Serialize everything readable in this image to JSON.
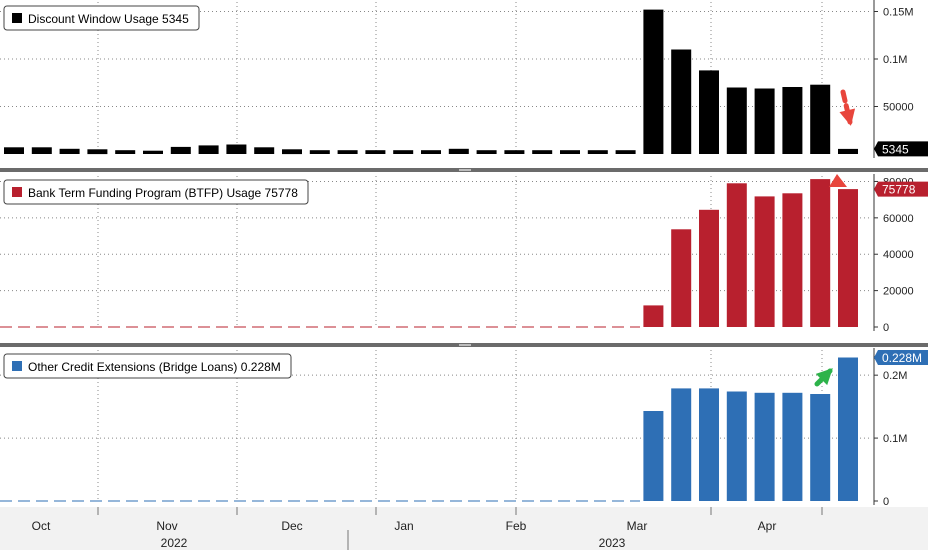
{
  "chart_data": [
    {
      "type": "bar",
      "legend": "Discount Window Usage 5345",
      "color": "#000000",
      "last_value_label": "5345",
      "ylim": [
        0,
        160000
      ],
      "yticks": [
        {
          "value": 50000,
          "label": "50000"
        },
        {
          "value": 100000,
          "label": "0.1M"
        },
        {
          "value": 150000,
          "label": "0.15M"
        }
      ],
      "values": [
        7000,
        7000,
        5500,
        5000,
        4000,
        3500,
        7500,
        9000,
        10000,
        7000,
        5000,
        4000,
        4000,
        4000,
        4000,
        4000,
        5500,
        4000,
        4000,
        4000,
        4000,
        4000,
        4000,
        152000,
        110000,
        88000,
        70000,
        69000,
        70500,
        73000,
        5345
      ]
    },
    {
      "type": "bar",
      "legend": "Bank Term Funding Program (BTFP) Usage 75778",
      "color": "#b8202e",
      "last_value_label": "75778",
      "ylim": [
        0,
        83000
      ],
      "yticks": [
        {
          "value": 0,
          "label": "0"
        },
        {
          "value": 20000,
          "label": "20000"
        },
        {
          "value": 40000,
          "label": "40000"
        },
        {
          "value": 60000,
          "label": "60000"
        },
        {
          "value": 80000,
          "label": "80000"
        }
      ],
      "values": [
        0,
        0,
        0,
        0,
        0,
        0,
        0,
        0,
        0,
        0,
        0,
        0,
        0,
        0,
        0,
        0,
        0,
        0,
        0,
        0,
        0,
        0,
        0,
        11900,
        53700,
        64400,
        79000,
        71800,
        73500,
        81300,
        75778
      ]
    },
    {
      "type": "bar",
      "legend": "Other Credit Extensions (Bridge Loans) 0.228M",
      "color": "#2e6fb5",
      "last_value_label": "0.228M",
      "ylim": [
        0,
        0.24
      ],
      "yticks": [
        {
          "value": 0,
          "label": "0"
        },
        {
          "value": 0.1,
          "label": "0.1M"
        },
        {
          "value": 0.2,
          "label": "0.2M"
        }
      ],
      "values": [
        0,
        0,
        0,
        0,
        0,
        0,
        0,
        0,
        0,
        0,
        0,
        0,
        0,
        0,
        0,
        0,
        0,
        0,
        0,
        0,
        0,
        0,
        0,
        0.143,
        0.179,
        0.179,
        0.174,
        0.172,
        0.172,
        0.17,
        0.228
      ]
    }
  ],
  "x_axis": {
    "months": [
      "Oct",
      "Nov",
      "Dec",
      "Jan",
      "Feb",
      "Mar",
      "Apr"
    ],
    "years": [
      "2022",
      "2023"
    ]
  },
  "annotations": {
    "discount_arrow_color": "#e8453c",
    "btfp_arrow_color": "#e8453c",
    "bridge_arrow_color": "#2db34a"
  }
}
